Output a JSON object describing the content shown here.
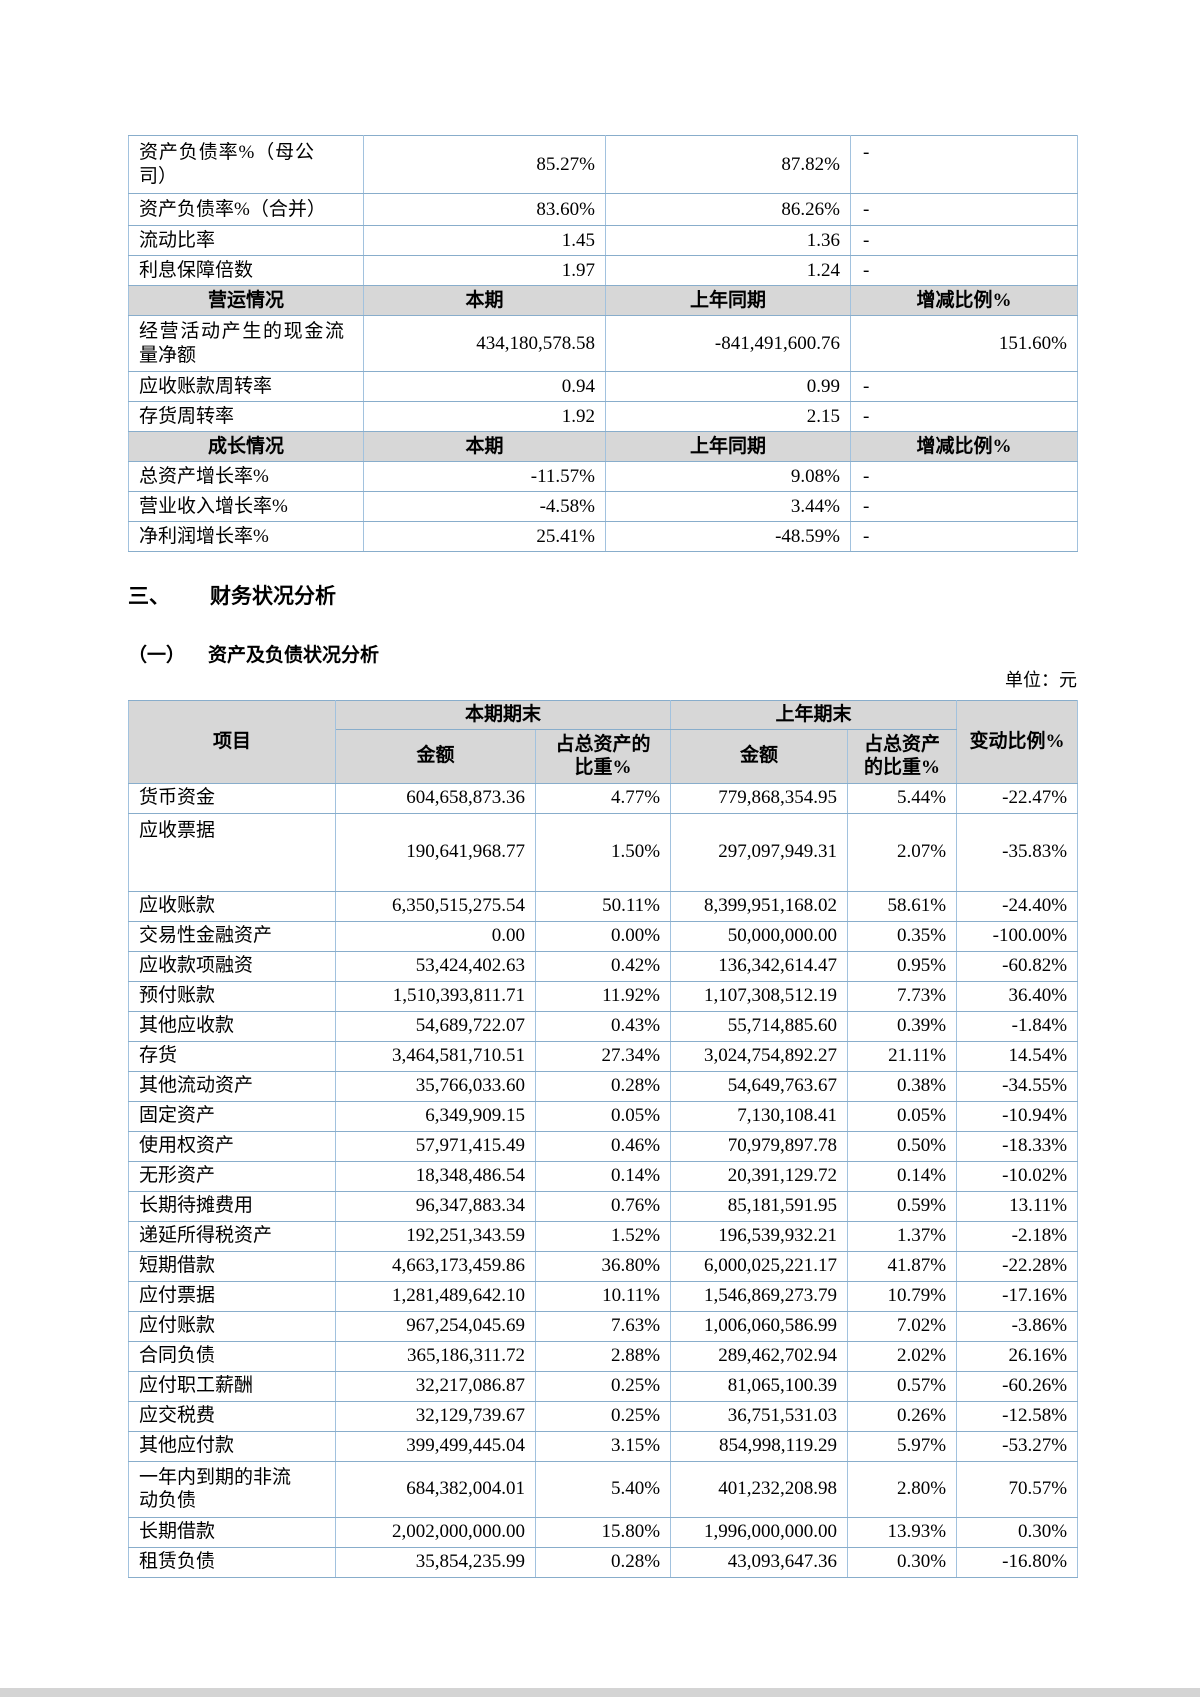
{
  "headings": {
    "section_number": "三、",
    "section_title": "财务状况分析",
    "subsection_number": "（一）",
    "subsection_title": "资产及负债状况分析",
    "unit_note": "单位：元"
  },
  "financial_ratios_table": {
    "rows": [
      {
        "is_header": false,
        "label": "资产负债率%（母公司）",
        "current": "85.27%",
        "prior": "87.82%",
        "change": "-"
      },
      {
        "is_header": false,
        "label": "资产负债率%（合并）",
        "current": "83.60%",
        "prior": "86.26%",
        "change": "-"
      },
      {
        "is_header": false,
        "label": "流动比率",
        "current": "1.45",
        "prior": "1.36",
        "change": "-"
      },
      {
        "is_header": false,
        "label": "利息保障倍数",
        "current": "1.97",
        "prior": "1.24",
        "change": "-"
      },
      {
        "is_header": true,
        "label": "营运情况",
        "current": "本期",
        "prior": "上年同期",
        "change": "增减比例%"
      },
      {
        "is_header": false,
        "label": "经营活动产生的现金流量净额",
        "current": "434,180,578.58",
        "prior": "-841,491,600.76",
        "change": "151.60%"
      },
      {
        "is_header": false,
        "label": "应收账款周转率",
        "current": "0.94",
        "prior": "0.99",
        "change": "-"
      },
      {
        "is_header": false,
        "label": "存货周转率",
        "current": "1.92",
        "prior": "2.15",
        "change": "-"
      },
      {
        "is_header": true,
        "label": "成长情况",
        "current": "本期",
        "prior": "上年同期",
        "change": "增减比例%"
      },
      {
        "is_header": false,
        "label": "总资产增长率%",
        "current": "-11.57%",
        "prior": "9.08%",
        "change": "-"
      },
      {
        "is_header": false,
        "label": "营业收入增长率%",
        "current": "-4.58%",
        "prior": "3.44%",
        "change": "-"
      },
      {
        "is_header": false,
        "label": "净利润增长率%",
        "current": "25.41%",
        "prior": "-48.59%",
        "change": "-"
      }
    ]
  },
  "assets_liabilities_table": {
    "header": {
      "item": "项目",
      "current_period": "本期期末",
      "prior_period": "上年期末",
      "amount_label": "金额",
      "current_pct_label": "占总资产的比重%",
      "prior_pct_label": "占总资产的比重%",
      "change_label": "变动比例%"
    },
    "rows": [
      {
        "item": "货币资金",
        "amount": "604,658,873.36",
        "pct": "4.77%",
        "prior_amount": "779,868,354.95",
        "prior_pct": "5.44%",
        "change": "-22.47%"
      },
      {
        "item": "应收票据",
        "amount": "190,641,968.77",
        "pct": "1.50%",
        "prior_amount": "297,097,949.31",
        "prior_pct": "2.07%",
        "change": "-35.83%"
      },
      {
        "item": "应收账款",
        "amount": "6,350,515,275.54",
        "pct": "50.11%",
        "prior_amount": "8,399,951,168.02",
        "prior_pct": "58.61%",
        "change": "-24.40%"
      },
      {
        "item": "交易性金融资产",
        "amount": "0.00",
        "pct": "0.00%",
        "prior_amount": "50,000,000.00",
        "prior_pct": "0.35%",
        "change": "-100.00%"
      },
      {
        "item": "应收款项融资",
        "amount": "53,424,402.63",
        "pct": "0.42%",
        "prior_amount": "136,342,614.47",
        "prior_pct": "0.95%",
        "change": "-60.82%"
      },
      {
        "item": "预付账款",
        "amount": "1,510,393,811.71",
        "pct": "11.92%",
        "prior_amount": "1,107,308,512.19",
        "prior_pct": "7.73%",
        "change": "36.40%"
      },
      {
        "item": "其他应收款",
        "amount": "54,689,722.07",
        "pct": "0.43%",
        "prior_amount": "55,714,885.60",
        "prior_pct": "0.39%",
        "change": "-1.84%"
      },
      {
        "item": "存货",
        "amount": "3,464,581,710.51",
        "pct": "27.34%",
        "prior_amount": "3,024,754,892.27",
        "prior_pct": "21.11%",
        "change": "14.54%"
      },
      {
        "item": "其他流动资产",
        "amount": "35,766,033.60",
        "pct": "0.28%",
        "prior_amount": "54,649,763.67",
        "prior_pct": "0.38%",
        "change": "-34.55%"
      },
      {
        "item": "固定资产",
        "amount": "6,349,909.15",
        "pct": "0.05%",
        "prior_amount": "7,130,108.41",
        "prior_pct": "0.05%",
        "change": "-10.94%"
      },
      {
        "item": "使用权资产",
        "amount": "57,971,415.49",
        "pct": "0.46%",
        "prior_amount": "70,979,897.78",
        "prior_pct": "0.50%",
        "change": "-18.33%"
      },
      {
        "item": "无形资产",
        "amount": "18,348,486.54",
        "pct": "0.14%",
        "prior_amount": "20,391,129.72",
        "prior_pct": "0.14%",
        "change": "-10.02%"
      },
      {
        "item": "长期待摊费用",
        "amount": "96,347,883.34",
        "pct": "0.76%",
        "prior_amount": "85,181,591.95",
        "prior_pct": "0.59%",
        "change": "13.11%"
      },
      {
        "item": "递延所得税资产",
        "amount": "192,251,343.59",
        "pct": "1.52%",
        "prior_amount": "196,539,932.21",
        "prior_pct": "1.37%",
        "change": "-2.18%"
      },
      {
        "item": "短期借款",
        "amount": "4,663,173,459.86",
        "pct": "36.80%",
        "prior_amount": "6,000,025,221.17",
        "prior_pct": "41.87%",
        "change": "-22.28%"
      },
      {
        "item": "应付票据",
        "amount": "1,281,489,642.10",
        "pct": "10.11%",
        "prior_amount": "1,546,869,273.79",
        "prior_pct": "10.79%",
        "change": "-17.16%"
      },
      {
        "item": "应付账款",
        "amount": "967,254,045.69",
        "pct": "7.63%",
        "prior_amount": "1,006,060,586.99",
        "prior_pct": "7.02%",
        "change": "-3.86%"
      },
      {
        "item": "合同负债",
        "amount": "365,186,311.72",
        "pct": "2.88%",
        "prior_amount": "289,462,702.94",
        "prior_pct": "2.02%",
        "change": "26.16%"
      },
      {
        "item": "应付职工薪酬",
        "amount": "32,217,086.87",
        "pct": "0.25%",
        "prior_amount": "81,065,100.39",
        "prior_pct": "0.57%",
        "change": "-60.26%"
      },
      {
        "item": "应交税费",
        "amount": "32,129,739.67",
        "pct": "0.25%",
        "prior_amount": "36,751,531.03",
        "prior_pct": "0.26%",
        "change": "-12.58%"
      },
      {
        "item": "其他应付款",
        "amount": "399,499,445.04",
        "pct": "3.15%",
        "prior_amount": "854,998,119.29",
        "prior_pct": "5.97%",
        "change": "-53.27%"
      },
      {
        "item": "一年内到期的非流动负债",
        "amount": "684,382,004.01",
        "pct": "5.40%",
        "prior_amount": "401,232,208.98",
        "prior_pct": "2.80%",
        "change": "70.57%"
      },
      {
        "item": "长期借款",
        "amount": "2,002,000,000.00",
        "pct": "15.80%",
        "prior_amount": "1,996,000,000.00",
        "prior_pct": "13.93%",
        "change": "0.30%"
      },
      {
        "item": "租赁负债",
        "amount": "35,854,235.99",
        "pct": "0.28%",
        "prior_amount": "43,093,647.36",
        "prior_pct": "0.30%",
        "change": "-16.80%"
      }
    ]
  }
}
